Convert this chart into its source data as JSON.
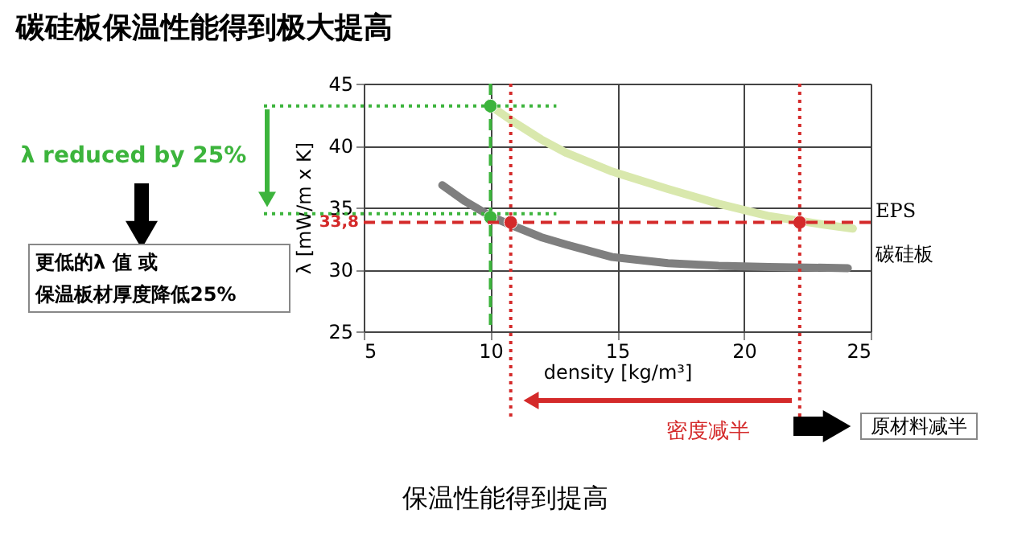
{
  "chart_data": {
    "type": "line",
    "title": "碳硅板保温性能得到极大提高",
    "xlabel": "density [kg/m³]",
    "ylabel": "λ [mW/m x K]",
    "xlim": [
      5,
      25
    ],
    "ylim": [
      25,
      45
    ],
    "xticks": [
      5,
      10,
      15,
      20,
      25
    ],
    "yticks": [
      25,
      30,
      35,
      40,
      45
    ],
    "grid": true,
    "marker": "none",
    "series": [
      {
        "name": "EPS",
        "color": "#d9e8ad",
        "x": [
          10,
          11,
          12,
          13,
          14.8,
          17,
          19,
          21,
          23.2,
          24.3
        ],
        "values": [
          43.2,
          41.8,
          40.5,
          39.4,
          37.9,
          36.5,
          35.3,
          34.3,
          33.6,
          33.3
        ]
      },
      {
        "name": "碳硅板",
        "color": "#7f7f7f",
        "x": [
          8.1,
          9,
          10,
          10.8,
          12,
          13,
          14.8,
          17,
          19,
          21,
          24.1
        ],
        "values": [
          36.8,
          35.5,
          34.3,
          33.6,
          32.6,
          32.0,
          31.0,
          30.5,
          30.3,
          30.2,
          30.1
        ]
      },
      {
        "type": "scatter",
        "marker": "circle",
        "color": "#3cb43c",
        "x": [
          10,
          10
        ],
        "values": [
          43.2,
          34.2
        ]
      },
      {
        "type": "scatter",
        "marker": "circle",
        "color": "#d42a2a",
        "x": [
          10.8,
          22.2
        ],
        "values": [
          33.8,
          33.8
        ]
      }
    ],
    "ref_lines": [
      {
        "axis": "y",
        "value": 33.8,
        "label": "33,8",
        "color": "#d42a2a",
        "line_style": "dashed"
      },
      {
        "axis": "x",
        "value": 10,
        "color": "#3cb43c",
        "line_style": "dashed"
      },
      {
        "axis": "x",
        "value": 10.8,
        "color": "#d42a2a",
        "line_style": "dotted"
      },
      {
        "axis": "x",
        "value": 22.2,
        "color": "#d42a2a",
        "line_style": "dotted"
      },
      {
        "axis": "y",
        "value": 43.2,
        "color": "#3cb43c",
        "line_style": "dotted"
      },
      {
        "axis": "y",
        "value": 34.5,
        "color": "#3cb43c",
        "line_style": "dotted"
      }
    ],
    "annotations": [
      "λ reduced by 25%",
      "更低的λ 值 或",
      "保温板材厚度降低25%",
      "密度减半",
      "原材料减半",
      "保温性能得到提高"
    ]
  }
}
